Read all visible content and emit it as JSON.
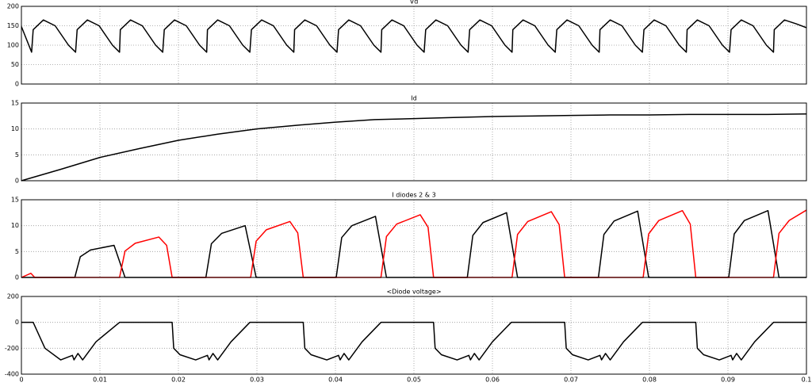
{
  "chart_data": [
    {
      "type": "line",
      "title": "Vd",
      "x": [
        0,
        0.0013,
        0.0015,
        0.0028,
        0.0043,
        0.006,
        0.0069,
        0.0071,
        0.0084,
        0.0099,
        0.0116,
        0.0125,
        0.0126,
        0.0139,
        0.0154,
        0.0171,
        0.018,
        0.0182,
        0.0195,
        0.021,
        0.0227,
        0.0236,
        0.0237,
        0.025,
        0.0265,
        0.0282,
        0.0291,
        0.0293,
        0.0306,
        0.0321,
        0.0338,
        0.0347,
        0.0348,
        0.0361,
        0.0376,
        0.0393,
        0.0402,
        0.0404,
        0.0417,
        0.0432,
        0.0449,
        0.0458,
        0.0459,
        0.0472,
        0.0487,
        0.0504,
        0.0513,
        0.0515,
        0.0528,
        0.0543,
        0.056,
        0.0569,
        0.0571,
        0.0584,
        0.0599,
        0.0616,
        0.0625,
        0.0626,
        0.0639,
        0.0654,
        0.0671,
        0.068,
        0.0682,
        0.0695,
        0.071,
        0.0727,
        0.0736,
        0.0737,
        0.075,
        0.0765,
        0.0782,
        0.0791,
        0.0793,
        0.0806,
        0.0821,
        0.0838,
        0.0847,
        0.0848,
        0.0861,
        0.0876,
        0.0893,
        0.0902,
        0.0904,
        0.0917,
        0.0932,
        0.0949,
        0.0958,
        0.0959,
        0.0972,
        0.0987,
        0.1
      ],
      "series": [
        {
          "color": "#000000",
          "values": [
            148,
            82,
            140,
            165,
            150,
            100,
            82,
            140,
            165,
            150,
            100,
            82,
            140,
            165,
            150,
            100,
            82,
            140,
            165,
            150,
            100,
            82,
            140,
            165,
            150,
            100,
            82,
            140,
            165,
            150,
            100,
            82,
            140,
            165,
            150,
            100,
            82,
            140,
            165,
            150,
            100,
            82,
            140,
            165,
            150,
            100,
            82,
            140,
            165,
            150,
            100,
            82,
            140,
            165,
            150,
            100,
            82,
            140,
            165,
            150,
            100,
            82,
            140,
            165,
            150,
            100,
            82,
            140,
            165,
            150,
            100,
            82,
            140,
            165,
            150,
            100,
            82,
            140,
            165,
            150,
            100,
            82,
            140,
            165,
            150,
            100,
            82,
            140,
            165,
            155,
            145
          ]
        }
      ],
      "xlim": [
        0,
        0.1
      ],
      "xticks": [
        0,
        0.01,
        0.02,
        0.03,
        0.04,
        0.05,
        0.06,
        0.07,
        0.08,
        0.09,
        0.1
      ],
      "ylim": [
        0,
        200
      ],
      "yticks": [
        0,
        50,
        100,
        150,
        200
      ],
      "grid": true
    },
    {
      "type": "line",
      "title": "Id",
      "x": [
        0,
        0.005,
        0.01,
        0.015,
        0.02,
        0.025,
        0.03,
        0.035,
        0.04,
        0.045,
        0.05,
        0.055,
        0.06,
        0.065,
        0.07,
        0.075,
        0.08,
        0.085,
        0.09,
        0.095,
        0.1
      ],
      "series": [
        {
          "color": "#000000",
          "values": [
            0,
            2.2,
            4.5,
            6.2,
            7.8,
            9,
            10,
            10.7,
            11.3,
            11.8,
            12,
            12.2,
            12.4,
            12.5,
            12.6,
            12.7,
            12.7,
            12.8,
            12.8,
            12.8,
            12.9
          ]
        }
      ],
      "xlim": [
        0,
        0.1
      ],
      "xticks": [
        0,
        0.01,
        0.02,
        0.03,
        0.04,
        0.05,
        0.06,
        0.07,
        0.08,
        0.09,
        0.1
      ],
      "ylim": [
        0,
        15
      ],
      "yticks": [
        0,
        5,
        10,
        15
      ],
      "grid": true
    },
    {
      "type": "line",
      "title": "I diodes 2 & 3",
      "x": [
        0,
        0.0012,
        0.0017,
        0.0068,
        0.0075,
        0.0088,
        0.0118,
        0.0125,
        0.0132,
        0.0145,
        0.0175,
        0.0185,
        0.0192,
        0.0235,
        0.0242,
        0.0255,
        0.0285,
        0.0292,
        0.0299,
        0.0312,
        0.0342,
        0.0352,
        0.0359,
        0.0401,
        0.0408,
        0.0421,
        0.0451,
        0.0458,
        0.0465,
        0.0478,
        0.0508,
        0.0518,
        0.0525,
        0.0568,
        0.0575,
        0.0588,
        0.0618,
        0.0625,
        0.0632,
        0.0645,
        0.0675,
        0.0685,
        0.0692,
        0.0735,
        0.0742,
        0.0755,
        0.0785,
        0.0792,
        0.0799,
        0.0812,
        0.0842,
        0.0852,
        0.0859,
        0.0901,
        0.0908,
        0.0921,
        0.0951,
        0.0958,
        0.0965,
        0.0978,
        0.1
      ],
      "series": [
        {
          "color": "#000000",
          "values": [
            0,
            0,
            0,
            0,
            4,
            5.3,
            6.2,
            3.1,
            0,
            0,
            0,
            0,
            0,
            0,
            6.5,
            8.5,
            10,
            5,
            0,
            0,
            0,
            0,
            0,
            0,
            7.7,
            10,
            11.8,
            5.9,
            0,
            0,
            0,
            0,
            0,
            0,
            8.1,
            10.6,
            12.5,
            6.3,
            0,
            0,
            0,
            0,
            0,
            0,
            8.3,
            10.9,
            12.8,
            6.4,
            0,
            0,
            0,
            0,
            0,
            0,
            8.4,
            11,
            12.9,
            6.5,
            0,
            0,
            0
          ]
        },
        {
          "color": "#ff0000",
          "values": [
            0,
            0.8,
            0,
            0,
            0,
            0,
            0,
            0,
            5.1,
            6.6,
            7.8,
            6.2,
            0,
            0,
            0,
            0,
            0,
            0,
            7,
            9.2,
            10.8,
            8.6,
            0,
            0,
            0,
            0,
            0,
            0,
            7.9,
            10.3,
            12.1,
            9.7,
            0,
            0,
            0,
            0,
            0,
            0,
            8.3,
            10.8,
            12.7,
            10.2,
            0,
            0,
            0,
            0,
            0,
            0,
            8.4,
            11,
            12.9,
            10.3,
            0,
            0,
            0,
            0,
            0,
            0,
            8.5,
            11,
            13
          ]
        }
      ],
      "xlim": [
        0,
        0.1
      ],
      "xticks": [
        0,
        0.01,
        0.02,
        0.03,
        0.04,
        0.05,
        0.06,
        0.07,
        0.08,
        0.09,
        0.1
      ],
      "ylim": [
        0,
        15
      ],
      "yticks": [
        0,
        5,
        10,
        15
      ],
      "grid": true
    },
    {
      "type": "line",
      "title": "<Diode voltage>",
      "x": [
        0,
        0.0015,
        0.003,
        0.005,
        0.0065,
        0.0067,
        0.0072,
        0.0078,
        0.0095,
        0.0125,
        0.0192,
        0.0194,
        0.0202,
        0.0222,
        0.0237,
        0.0239,
        0.0244,
        0.025,
        0.0267,
        0.0291,
        0.0359,
        0.0361,
        0.0369,
        0.0389,
        0.0404,
        0.0406,
        0.0411,
        0.0417,
        0.0434,
        0.0458,
        0.0525,
        0.0527,
        0.0535,
        0.0555,
        0.057,
        0.0572,
        0.0577,
        0.0583,
        0.06,
        0.0624,
        0.0692,
        0.0694,
        0.0702,
        0.0722,
        0.0737,
        0.0739,
        0.0744,
        0.075,
        0.0767,
        0.0791,
        0.0859,
        0.0861,
        0.0869,
        0.0889,
        0.0904,
        0.0906,
        0.0911,
        0.0917,
        0.0934,
        0.0958,
        0.1
      ],
      "series": [
        {
          "color": "#000000",
          "values": [
            0,
            0,
            -200,
            -290,
            -255,
            -290,
            -240,
            -290,
            -150,
            0,
            0,
            -200,
            -250,
            -290,
            -255,
            -290,
            -240,
            -290,
            -150,
            0,
            0,
            -200,
            -250,
            -290,
            -255,
            -290,
            -240,
            -290,
            -150,
            0,
            0,
            -200,
            -250,
            -290,
            -255,
            -290,
            -240,
            -290,
            -150,
            0,
            0,
            -200,
            -250,
            -290,
            -255,
            -290,
            -240,
            -290,
            -150,
            0,
            0,
            -200,
            -250,
            -290,
            -255,
            -290,
            -240,
            -290,
            -150,
            0,
            0
          ]
        }
      ],
      "xlim": [
        0,
        0.1
      ],
      "xticks": [
        0,
        0.01,
        0.02,
        0.03,
        0.04,
        0.05,
        0.06,
        0.07,
        0.08,
        0.09,
        0.1
      ],
      "ylim": [
        -400,
        200
      ],
      "yticks": [
        -400,
        -200,
        0,
        200
      ],
      "grid": true
    }
  ]
}
